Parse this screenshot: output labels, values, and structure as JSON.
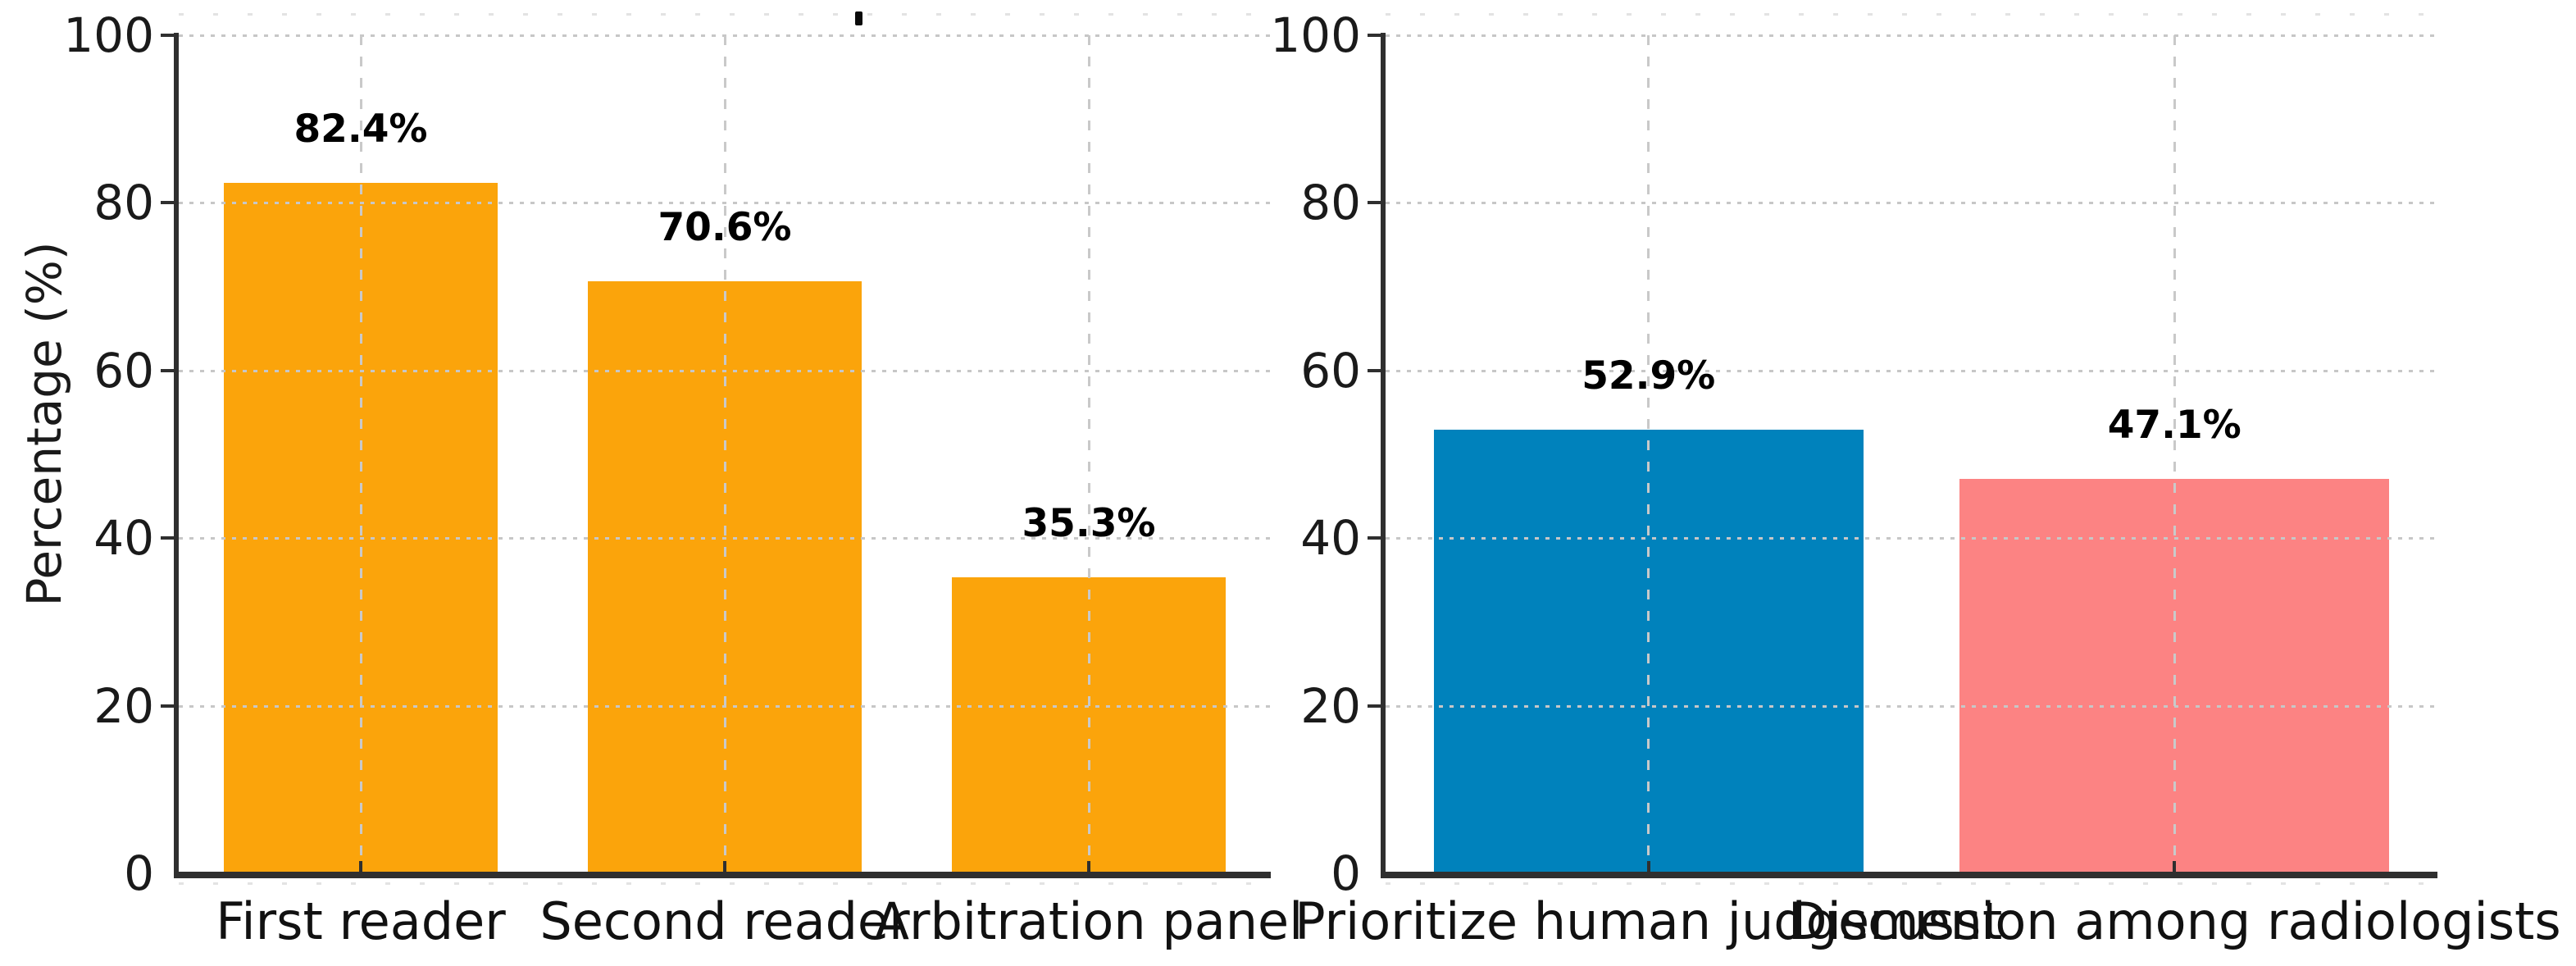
{
  "figure": {
    "background": "#ffffff",
    "title": "",
    "cropped_title_fragment": true
  },
  "chart_data": [
    {
      "type": "bar",
      "panel": "left",
      "categories": [
        "First reader",
        "Second reader",
        "Arbitration panel"
      ],
      "values": [
        82.4,
        70.6,
        35.3
      ],
      "value_labels": [
        "82.4%",
        "70.6%",
        "35.3%"
      ],
      "bar_colors": [
        "#FBA40B",
        "#FBA40B",
        "#FBA40B"
      ],
      "xlabel": "",
      "ylabel": "Percentage (%)",
      "ylim": [
        0,
        100
      ],
      "yticks": [
        0,
        20,
        40,
        60,
        80,
        100
      ],
      "grid": "dotted horizontal gridlines at yticks, dashed vertical gridlines at bar centers, drawn over bars",
      "legend": null
    },
    {
      "type": "bar",
      "panel": "right",
      "categories": [
        "Prioritize human judgement",
        "Discussion among radiologists"
      ],
      "values": [
        52.9,
        47.1
      ],
      "value_labels": [
        "52.9%",
        "47.1%"
      ],
      "bar_colors": [
        "#0082BC",
        "#FC8383"
      ],
      "xlabel": "",
      "ylabel": "",
      "ylim": [
        0,
        100
      ],
      "yticks": [
        0,
        20,
        40,
        60,
        80,
        100
      ],
      "grid": "dotted horizontal gridlines at yticks, dashed vertical gridlines at bar centers, drawn over bars",
      "legend": null
    }
  ],
  "colors": {
    "axis_spine": "#2f2f2f",
    "gridline": "#c7c7c7",
    "tick_text": "#1a1a1a",
    "value_label_text": "#000000"
  }
}
